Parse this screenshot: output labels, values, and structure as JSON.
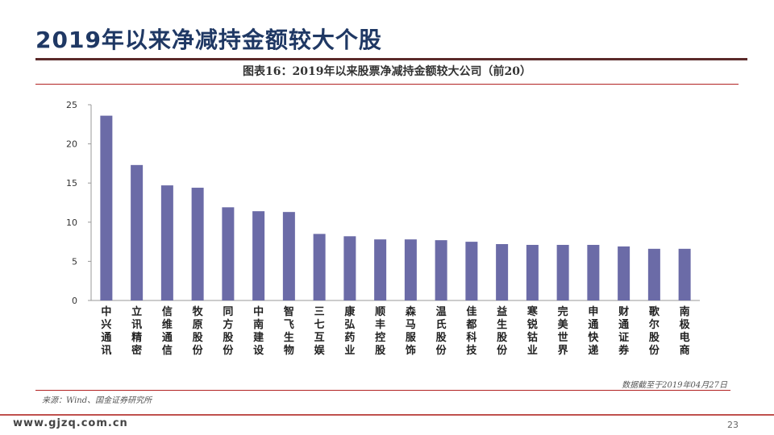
{
  "slide": {
    "title": "2019年以来净减持金额较大个股",
    "website": "www.gjzq.com.cn",
    "page_number": "23"
  },
  "colors": {
    "bar": "#6b6ba7",
    "title": "#1f3864",
    "accent_rule": "#b22222"
  },
  "chart_data": {
    "type": "bar",
    "title": "图表16：2019年以来股票净减持金额较大公司（前20）",
    "categories": [
      "中兴通讯",
      "立讯精密",
      "信维通信",
      "牧原股份",
      "同方股份",
      "中南建设",
      "智飞生物",
      "三七互娱",
      "康弘药业",
      "顺丰控股",
      "森马服饰",
      "温氏股份",
      "佳都科技",
      "益生股份",
      "寒锐钴业",
      "完美世界",
      "申通快递",
      "财通证券",
      "歌尔股份",
      "南极电商"
    ],
    "values": [
      23.6,
      17.3,
      14.7,
      14.4,
      11.9,
      11.4,
      11.3,
      8.5,
      8.2,
      7.8,
      7.8,
      7.7,
      7.5,
      7.2,
      7.1,
      7.1,
      7.1,
      6.9,
      6.6,
      6.6
    ],
    "yticks": [
      0,
      5,
      10,
      15,
      20,
      25
    ],
    "ylim": [
      0,
      25
    ],
    "xlabel": "",
    "ylabel": "",
    "grid": false,
    "legend": "none"
  },
  "notes": {
    "data_date": "数据截至于2019年04月27日",
    "source": "来源：Wind、国金证券研究所"
  }
}
